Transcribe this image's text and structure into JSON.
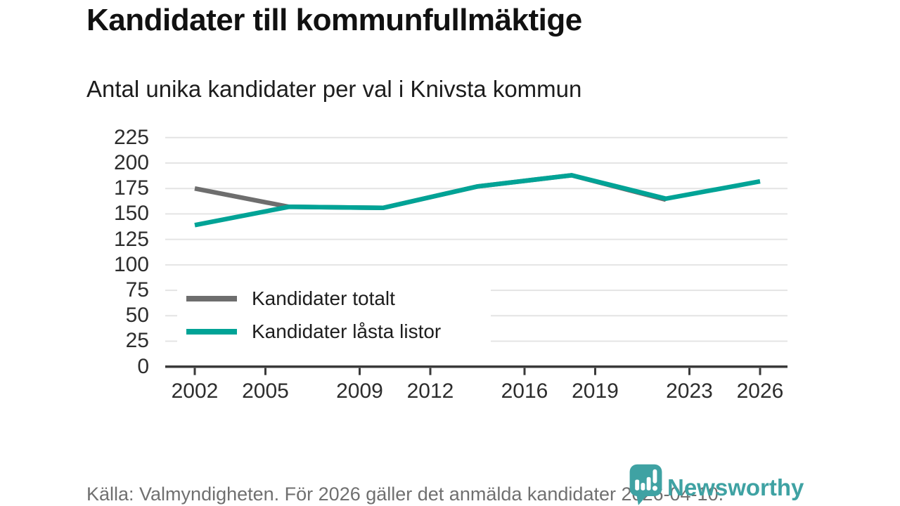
{
  "header": {
    "title": "Kandidater till kommunfullmäktige",
    "subtitle": "Antal unika kandidater per val i Knivsta kommun"
  },
  "chart_data": {
    "type": "line",
    "title": "Kandidater till kommunfullmäktige",
    "subtitle": "Antal unika kandidater per val i Knivsta kommun",
    "xlabel": "",
    "ylabel": "",
    "x_tick_labels": [
      2002,
      2005,
      2009,
      2012,
      2016,
      2019,
      2023,
      2026
    ],
    "y_tick_labels": [
      0,
      25,
      50,
      75,
      100,
      125,
      150,
      175,
      200,
      225
    ],
    "xlim": [
      2002,
      2026
    ],
    "ylim": [
      0,
      235
    ],
    "grid": "horizontal",
    "legend_position": "inside-bottom-left",
    "series": [
      {
        "name": "Kandidater totalt",
        "color": "#6e6e6e",
        "x": [
          2002,
          2006,
          2010,
          2014,
          2018,
          2022
        ],
        "values": [
          175,
          157,
          156,
          177,
          188,
          164
        ]
      },
      {
        "name": "Kandidater låsta listor",
        "color": "#00a396",
        "x": [
          2002,
          2006,
          2010,
          2014,
          2018,
          2022,
          2026
        ],
        "values": [
          139,
          157,
          156,
          177,
          188,
          165,
          182
        ]
      }
    ]
  },
  "footer": {
    "source": "Källa: Valmyndigheten. För 2026 gäller det anmälda kandidater 2026-04-10.",
    "logo_text": "Newsworthy",
    "logo_color": "#3fa2a3",
    "logo_icon": "newsworthy-pin-barchart"
  },
  "colors": {
    "grid": "#e4e4e4",
    "axis": "#3a3a3a",
    "axis_text": "#2d2d2d",
    "footer_text": "#707070",
    "background": "#ffffff"
  }
}
